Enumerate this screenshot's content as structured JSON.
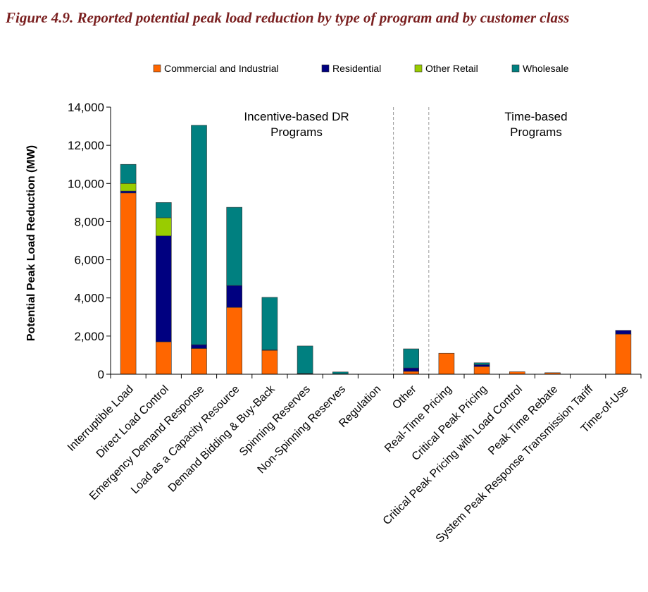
{
  "figure": {
    "title": "Figure 4.9.  Reported potential peak load reduction by type of program and by customer class"
  },
  "chart_data": {
    "type": "bar",
    "stacked": true,
    "ylabel": "Potential Peak Load Reduction (MW)",
    "ylim": [
      0,
      14000
    ],
    "yticks": [
      0,
      2000,
      4000,
      6000,
      8000,
      10000,
      12000,
      14000
    ],
    "ytick_labels": [
      "0",
      "2,000",
      "4,000",
      "6,000",
      "8,000",
      "10,000",
      "12,000",
      "14,000"
    ],
    "grid": false,
    "legend_position": "top",
    "categories": [
      "Interruptible Load",
      "Direct Load Control",
      "Emergency Demand Response",
      "Load as a Capacity Resource",
      "Demand Bidding & Buy-Back",
      "Spinning Reserves",
      "Non-Spinning Reserves",
      "Regulation",
      "Other",
      "Real-Time Pricing",
      "Critical Peak Pricing",
      "Critical Peak Pricing with Load Control",
      "Peak Time Rebate",
      "System Peak Response Transmission Tariff",
      "Time-of-Use"
    ],
    "series": [
      {
        "name": "Commercial and Industrial",
        "color": "#ff6600",
        "values": [
          9500,
          1700,
          1350,
          3500,
          1250,
          30,
          20,
          0,
          150,
          1100,
          400,
          130,
          80,
          0,
          2100
        ]
      },
      {
        "name": "Residential",
        "color": "#000080",
        "values": [
          100,
          5550,
          200,
          1150,
          30,
          10,
          0,
          0,
          180,
          0,
          100,
          0,
          0,
          0,
          200
        ]
      },
      {
        "name": "Other Retail",
        "color": "#99cc00",
        "values": [
          400,
          950,
          0,
          0,
          0,
          0,
          0,
          0,
          0,
          0,
          0,
          0,
          0,
          0,
          0
        ]
      },
      {
        "name": "Wholesale",
        "color": "#008080",
        "values": [
          1000,
          800,
          11500,
          4100,
          2750,
          1440,
          100,
          0,
          1000,
          0,
          100,
          0,
          0,
          0,
          0
        ]
      }
    ],
    "annotations": [
      {
        "text": [
          "Incentive-based DR",
          "Programs"
        ],
        "position": "top, over incentive-based programs"
      },
      {
        "text": [
          "Time-based",
          "Programs"
        ],
        "position": "top, over time-based programs"
      }
    ],
    "dividers": [
      "between Regulation and Other",
      "between Other and Real-Time Pricing"
    ]
  }
}
